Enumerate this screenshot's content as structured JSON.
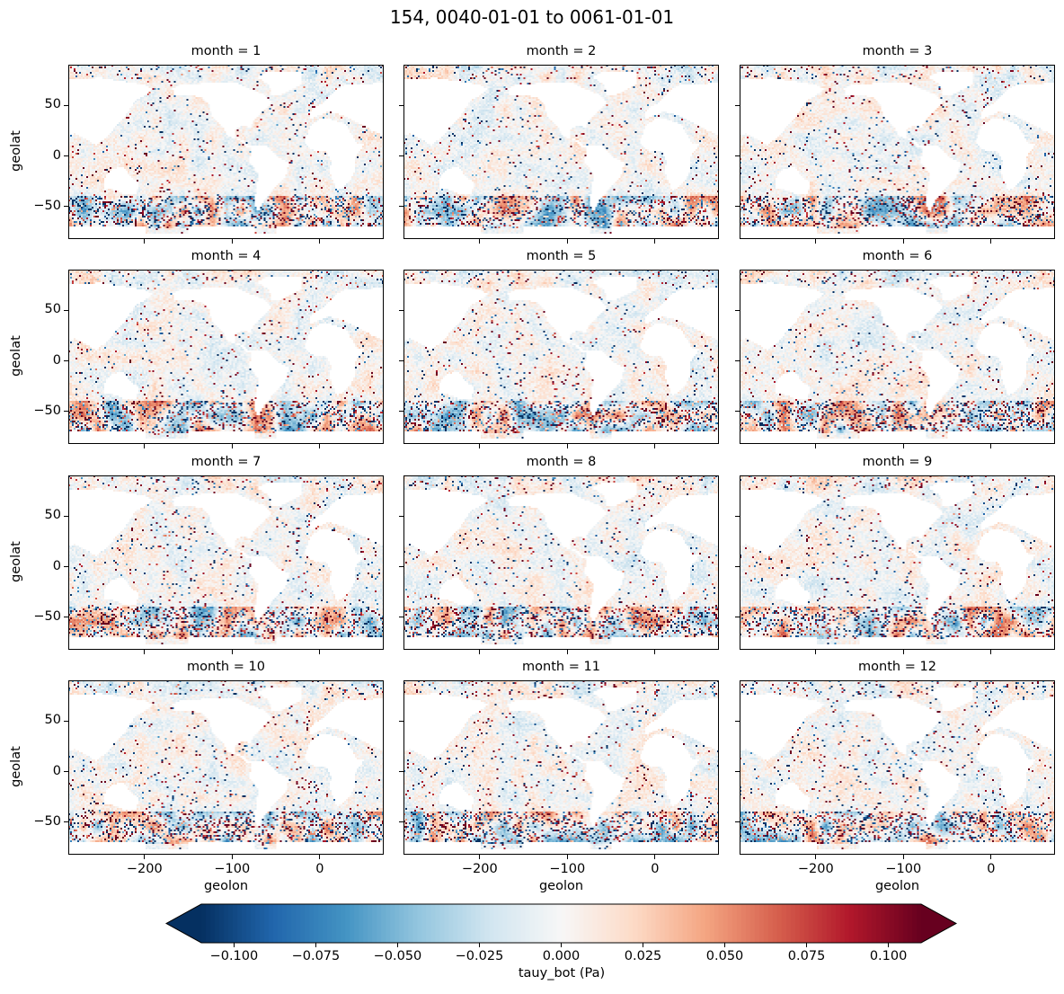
{
  "chart_data": {
    "type": "heatmap",
    "title": "154, 0040-01-01 to 0061-01-01",
    "layout": "4 rows x 3 columns facet grid",
    "panels": [
      {
        "title": "month = 1"
      },
      {
        "title": "month = 2"
      },
      {
        "title": "month = 3"
      },
      {
        "title": "month = 4"
      },
      {
        "title": "month = 5"
      },
      {
        "title": "month = 6"
      },
      {
        "title": "month = 7"
      },
      {
        "title": "month = 8"
      },
      {
        "title": "month = 9"
      },
      {
        "title": "month = 10"
      },
      {
        "title": "month = 11"
      },
      {
        "title": "month = 12"
      }
    ],
    "xlabel": "geolon",
    "ylabel": "geolat",
    "xlim": [
      -287,
      73
    ],
    "ylim": [
      -82,
      90
    ],
    "xticks": [
      -200,
      -100,
      0
    ],
    "xtick_labels": [
      "−200",
      "−100",
      "0"
    ],
    "yticks": [
      50,
      0,
      -50
    ],
    "ytick_labels": [
      "50",
      "0",
      "−50"
    ],
    "colorbar": {
      "label": "tauy_bot (Pa)",
      "colormap": "RdBu_r",
      "vmin": -0.11,
      "vmax": 0.11,
      "extend": "both",
      "orientation": "horizontal",
      "ticks": [
        -0.1,
        -0.075,
        -0.05,
        -0.025,
        0.0,
        0.025,
        0.05,
        0.075,
        0.1
      ],
      "tick_labels": [
        "−0.100",
        "−0.075",
        "−0.050",
        "−0.025",
        "0.000",
        "0.025",
        "0.050",
        "0.075",
        "0.100"
      ]
    },
    "missing_color": "#ffffff",
    "grid": false
  }
}
